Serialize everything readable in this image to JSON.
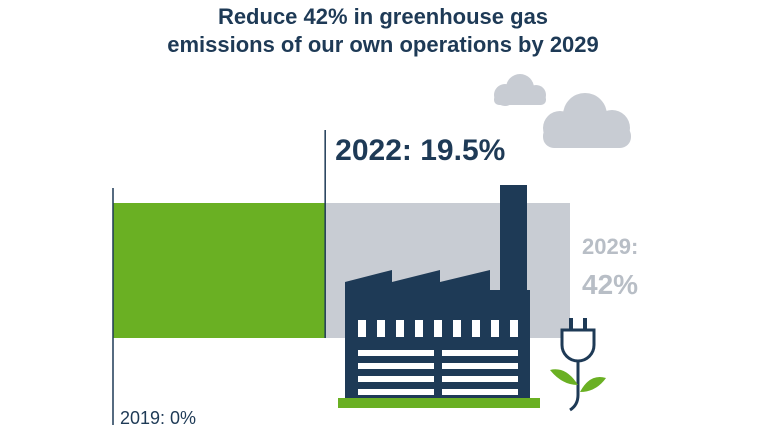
{
  "chart_data": {
    "type": "progress",
    "title": [
      "Reduce 42% in greenhouse gas",
      "emissions of our own operations by 2029"
    ],
    "xlim": [
      0,
      42
    ],
    "series": [
      {
        "name": "2029: 42%",
        "color": "#c8ccd3",
        "values": [
          42
        ]
      },
      {
        "name": "2022: 19.5%",
        "color": "#6ab023",
        "values": [
          19.5
        ]
      }
    ],
    "markers": [
      {
        "label": "2019: 0%",
        "value": 0
      },
      {
        "label": "2022: 19.5%",
        "value": 19.5
      },
      {
        "label": [
          "2029:",
          "42%"
        ],
        "value": 42
      }
    ]
  }
}
